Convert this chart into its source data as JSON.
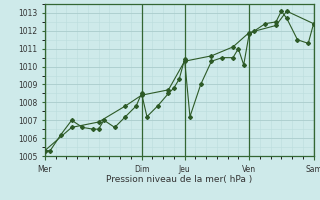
{
  "bg_color": "#ceeaea",
  "grid_major_color": "#aacccc",
  "grid_minor_color": "#bbdddd",
  "line_color": "#2d5a27",
  "xlabel": "Pression niveau de la mer( hPa )",
  "ylim": [
    1005.0,
    1013.5
  ],
  "yticks": [
    1005,
    1006,
    1007,
    1008,
    1009,
    1010,
    1011,
    1012,
    1013
  ],
  "xtick_labels": [
    "Mer",
    "",
    "Dim",
    "Jeu",
    "",
    "Ven",
    "",
    "Sam"
  ],
  "day_vlines": [
    0,
    9,
    13,
    19,
    25
  ],
  "day_labels": [
    "Mer",
    "Dim",
    "Jeu",
    "Ven",
    "Sam"
  ],
  "xmax": 25,
  "series1_x": [
    0,
    0.5,
    1.5,
    2.5,
    3.5,
    4.5,
    5.0,
    5.5,
    6.5,
    7.5,
    8.5,
    9.0,
    9.5,
    10.5,
    11.5,
    12.0,
    12.5,
    13.0,
    13.5,
    14.5,
    15.5,
    16.5,
    17.5,
    18.0,
    18.5,
    19.0,
    19.5,
    20.5,
    21.5,
    22.0,
    22.5,
    23.5,
    24.5,
    25.0
  ],
  "series1_y": [
    1005.3,
    1005.3,
    1006.2,
    1007.0,
    1006.6,
    1006.5,
    1006.5,
    1007.0,
    1006.6,
    1007.2,
    1007.8,
    1008.5,
    1007.2,
    1007.8,
    1008.5,
    1008.8,
    1009.3,
    1010.4,
    1007.2,
    1009.0,
    1010.3,
    1010.5,
    1010.5,
    1011.0,
    1010.1,
    1011.8,
    1012.0,
    1012.4,
    1012.5,
    1013.1,
    1012.7,
    1011.5,
    1011.3,
    1012.4
  ],
  "series2_x": [
    0,
    2.5,
    5.0,
    7.5,
    9.0,
    11.5,
    13.0,
    15.5,
    17.5,
    19.0,
    21.5,
    22.5,
    25.0
  ],
  "series2_y": [
    1005.3,
    1006.6,
    1006.9,
    1007.8,
    1008.4,
    1008.7,
    1010.3,
    1010.6,
    1011.1,
    1011.9,
    1012.3,
    1013.1,
    1012.4
  ]
}
